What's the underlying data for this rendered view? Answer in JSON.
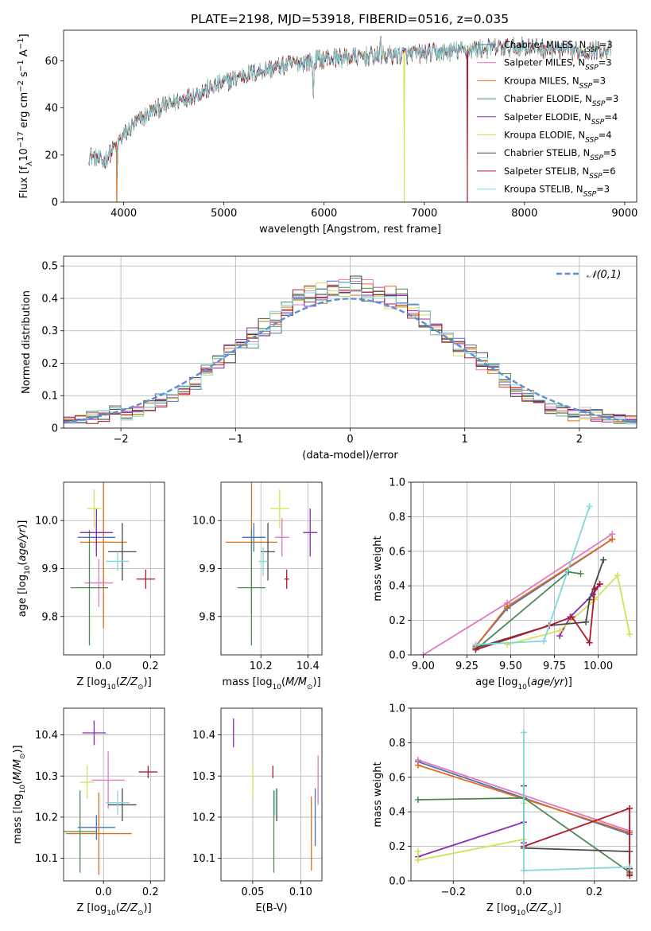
{
  "figure_title": "PLATE=2198, MJD=53918, FIBERID=0516, z=0.035",
  "colors": {
    "chabrier_miles": "#4c72b0",
    "salpeter_miles": "#e377c2",
    "kroupa_miles": "#dd6f1e",
    "chabrier_elodie": "#4d8a58",
    "salpeter_elodie": "#8e2ab0",
    "kroupa_elodie": "#d4e157",
    "chabrier_stelib": "#4a4a4a",
    "salpeter_stelib": "#b2182b",
    "kroupa_stelib": "#7fd8de",
    "gaussian": "#5b8fd6"
  },
  "chart_data": [
    {
      "id": "spectrum",
      "type": "line",
      "title": "PLATE=2198, MJD=53918, FIBERID=0516, z=0.035",
      "xlabel": "wavelength [Angstrom, rest frame]",
      "ylabel": "Flux [f_λ10^-17 erg cm^-2 s^-1 A^-1]",
      "xlim": [
        3400,
        9120
      ],
      "ylim": [
        0,
        73
      ],
      "xticks": [
        4000,
        5000,
        6000,
        7000,
        8000,
        9000
      ],
      "yticks": [
        0,
        20,
        40,
        60
      ],
      "legend_position": "upper right",
      "series": [
        {
          "name": "Chabrier MILES",
          "nssp": "3",
          "key": "chabrier_miles"
        },
        {
          "name": "Salpeter MILES",
          "nssp": "3",
          "key": "salpeter_miles"
        },
        {
          "name": "Kroupa MILES",
          "nssp": "3",
          "key": "kroupa_miles"
        },
        {
          "name": "Chabrier ELODIE",
          "nssp": "3",
          "key": "chabrier_elodie"
        },
        {
          "name": "Salpeter ELODIE",
          "nssp": "4",
          "key": "salpeter_elodie"
        },
        {
          "name": "Kroupa ELODIE",
          "nssp": "4",
          "key": "kroupa_elodie"
        },
        {
          "name": "Chabrier STELIB",
          "nssp": "5",
          "key": "chabrier_stelib"
        },
        {
          "name": "Salpeter STELIB",
          "nssp": "6",
          "key": "salpeter_stelib"
        },
        {
          "name": "Kroupa STELIB",
          "nssp": "3",
          "key": "kroupa_stelib"
        }
      ],
      "continuum": {
        "x": [
          3650,
          3800,
          3950,
          4100,
          4300,
          4600,
          4900,
          5200,
          5600,
          6000,
          6500,
          7000,
          7500,
          8000,
          8500,
          8850
        ],
        "y": [
          20,
          17,
          26,
          33,
          39,
          44,
          49,
          54,
          58,
          61,
          62,
          63,
          65,
          66,
          64,
          65
        ]
      },
      "features": [
        {
          "x": 3933,
          "y": 5
        },
        {
          "x": 5893,
          "y": 39
        },
        {
          "x": 6563,
          "y": 72
        }
      ],
      "drops": [
        {
          "x": 3930,
          "y": 0,
          "key": "kroupa_miles"
        },
        {
          "x": 6800,
          "y": 0,
          "key": "kroupa_elodie"
        },
        {
          "x": 7430,
          "y": 0,
          "key": "salpeter_stelib"
        }
      ]
    },
    {
      "id": "residuals",
      "type": "step",
      "xlabel": "(data-model)/error",
      "ylabel": "Normed distribution",
      "xlim": [
        -2.5,
        2.5
      ],
      "ylim": [
        0,
        0.53
      ],
      "xticks": [
        -2,
        -1,
        0,
        1,
        2
      ],
      "xticklabels": [
        "−2",
        "−1",
        "0",
        "1",
        "2"
      ],
      "yticks": [
        0.0,
        0.1,
        0.2,
        0.3,
        0.4,
        0.5
      ],
      "legend": {
        "name": "𝒩(0,1)",
        "position": "upper right"
      },
      "bin_width": 0.1,
      "bins_start": -2.5
    },
    {
      "id": "age_vs_Z",
      "type": "errorbar",
      "xlabel": "Z [log10(Z/Z⊙)]",
      "ylabel": "age [log10(age/yr)]",
      "xlim": [
        -0.17,
        0.26
      ],
      "ylim": [
        9.72,
        10.08
      ],
      "xticks": [
        -0.0,
        0.2
      ],
      "xticklabels": [
        "0.0",
        "0.2"
      ],
      "yticks": [
        9.8,
        9.9,
        10.0
      ],
      "yticklabels": [
        "9.8",
        "9.9",
        "10.0"
      ],
      "points": [
        {
          "key": "chabrier_miles",
          "x": -0.03,
          "xerr": 0.08,
          "y": 9.965,
          "yerr": 0.03
        },
        {
          "key": "salpeter_miles",
          "x": -0.02,
          "xerr": 0.06,
          "y": 9.87,
          "yerr": 0.05
        },
        {
          "key": "kroupa_miles",
          "x": 0.0,
          "xerr": 0.1,
          "y": 9.955,
          "yerr": 0.18
        },
        {
          "key": "chabrier_elodie",
          "x": -0.06,
          "xerr": 0.08,
          "y": 9.86,
          "yerr": 0.12
        },
        {
          "key": "salpeter_elodie",
          "x": -0.03,
          "xerr": 0.07,
          "y": 9.975,
          "yerr": 0.05
        },
        {
          "key": "kroupa_elodie",
          "x": -0.04,
          "xerr": 0.03,
          "y": 10.025,
          "yerr": 0.04
        },
        {
          "key": "chabrier_stelib",
          "x": 0.08,
          "xerr": 0.06,
          "y": 9.935,
          "yerr": 0.06
        },
        {
          "key": "salpeter_stelib",
          "x": 0.18,
          "xerr": 0.04,
          "y": 9.878,
          "yerr": 0.02
        },
        {
          "key": "kroupa_stelib",
          "x": 0.06,
          "xerr": 0.05,
          "y": 9.915,
          "yerr": 0.02
        }
      ]
    },
    {
      "id": "age_vs_mass",
      "type": "errorbar",
      "xlabel": "mass [log10(M/M⊙)]",
      "ylabel": "",
      "xlim": [
        10.03,
        10.46
      ],
      "ylim": [
        9.72,
        10.08
      ],
      "xticks": [
        10.2,
        10.4
      ],
      "xticklabels": [
        "10.2",
        "10.4"
      ],
      "yticks": [
        9.8,
        9.9,
        10.0
      ],
      "yticklabels": [
        "9.8",
        "9.9",
        "10.0"
      ],
      "points": [
        {
          "key": "chabrier_miles",
          "x": 10.17,
          "xerr": 0.05,
          "y": 9.965,
          "yerr": 0.03
        },
        {
          "key": "salpeter_miles",
          "x": 10.29,
          "xerr": 0.03,
          "y": 9.965,
          "yerr": 0.04
        },
        {
          "key": "kroupa_miles",
          "x": 10.16,
          "xerr": 0.11,
          "y": 9.955,
          "yerr": 0.15
        },
        {
          "key": "chabrier_elodie",
          "x": 10.16,
          "xerr": 0.06,
          "y": 9.86,
          "yerr": 0.12
        },
        {
          "key": "salpeter_elodie",
          "x": 10.41,
          "xerr": 0.03,
          "y": 9.975,
          "yerr": 0.05
        },
        {
          "key": "kroupa_elodie",
          "x": 10.28,
          "xerr": 0.04,
          "y": 10.025,
          "yerr": 0.04
        },
        {
          "key": "chabrier_stelib",
          "x": 10.23,
          "xerr": 0.03,
          "y": 9.935,
          "yerr": 0.06
        },
        {
          "key": "salpeter_stelib",
          "x": 10.31,
          "xerr": 0.01,
          "y": 9.878,
          "yerr": 0.02
        },
        {
          "key": "kroupa_stelib",
          "x": 10.21,
          "xerr": 0.02,
          "y": 9.915,
          "yerr": 0.03
        }
      ]
    },
    {
      "id": "weight_vs_age",
      "type": "line",
      "xlabel": "age [log10(age/yr)]",
      "ylabel": "mass weight",
      "xlim": [
        8.93,
        10.22
      ],
      "ylim": [
        0,
        1.0
      ],
      "xticks": [
        9.0,
        9.25,
        9.5,
        9.75,
        10.0
      ],
      "xticklabels": [
        "9.00",
        "9.25",
        "9.50",
        "9.75",
        "10.00"
      ],
      "yticks": [
        0,
        0.2,
        0.4,
        0.6,
        0.8,
        1.0
      ],
      "yticklabels": [
        "0.0",
        "0.2",
        "0.4",
        "0.6",
        "0.8",
        "1.0"
      ],
      "series": [
        {
          "key": "chabrier_miles",
          "x": [
            9.3,
            9.48,
            10.08
          ],
          "y": [
            0.05,
            0.27,
            0.67
          ]
        },
        {
          "key": "salpeter_miles",
          "x": [
            9.0,
            9.48,
            10.08
          ],
          "y": [
            0.0,
            0.3,
            0.7
          ]
        },
        {
          "key": "kroupa_miles",
          "x": [
            9.3,
            9.48,
            10.08
          ],
          "y": [
            0.05,
            0.28,
            0.67
          ]
        },
        {
          "key": "chabrier_elodie",
          "x": [
            9.3,
            9.83,
            9.9
          ],
          "y": [
            0.03,
            0.48,
            0.47
          ]
        },
        {
          "key": "salpeter_elodie",
          "x": [
            9.78,
            9.84,
            9.97,
            10.01
          ],
          "y": [
            0.11,
            0.22,
            0.35,
            0.41
          ]
        },
        {
          "key": "kroupa_elodie",
          "x": [
            9.48,
            9.78,
            9.98,
            10.11,
            10.18
          ],
          "y": [
            0.06,
            0.14,
            0.32,
            0.46,
            0.12
          ]
        },
        {
          "key": "chabrier_stelib",
          "x": [
            9.3,
            9.72,
            9.93,
            9.95,
            10.03
          ],
          "y": [
            0.04,
            0.17,
            0.19,
            0.32,
            0.55
          ]
        },
        {
          "key": "salpeter_stelib",
          "x": [
            9.3,
            9.72,
            9.85,
            9.95,
            9.98,
            10.01
          ],
          "y": [
            0.03,
            0.17,
            0.22,
            0.07,
            0.38,
            0.41
          ]
        },
        {
          "key": "kroupa_stelib",
          "x": [
            9.3,
            9.69,
            9.95
          ],
          "y": [
            0.06,
            0.08,
            0.86
          ]
        }
      ]
    },
    {
      "id": "mass_vs_Z",
      "type": "errorbar",
      "xlabel": "Z [log10(Z/Z⊙)]",
      "ylabel": "mass [log10(M/M⊙)]",
      "xlim": [
        -0.17,
        0.26
      ],
      "ylim": [
        10.045,
        10.465
      ],
      "xticks": [
        0.0,
        0.2
      ],
      "xticklabels": [
        "0.0",
        "0.2"
      ],
      "yticks": [
        10.1,
        10.2,
        10.3,
        10.4
      ],
      "yticklabels": [
        "10.1",
        "10.2",
        "10.3",
        "10.4"
      ],
      "points": [
        {
          "key": "chabrier_miles",
          "x": -0.03,
          "xerr": 0.08,
          "y": 10.175,
          "yerr": 0.03
        },
        {
          "key": "salpeter_miles",
          "x": 0.02,
          "xerr": 0.07,
          "y": 10.29,
          "yerr": 0.07
        },
        {
          "key": "kroupa_miles",
          "x": -0.02,
          "xerr": 0.14,
          "y": 10.16,
          "yerr": 0.1
        },
        {
          "key": "chabrier_elodie",
          "x": -0.1,
          "xerr": 0.07,
          "y": 10.165,
          "yerr": 0.1
        },
        {
          "key": "salpeter_elodie",
          "x": -0.04,
          "xerr": 0.05,
          "y": 10.405,
          "yerr": 0.03
        },
        {
          "key": "kroupa_elodie",
          "x": -0.07,
          "xerr": 0.03,
          "y": 10.285,
          "yerr": 0.04
        },
        {
          "key": "chabrier_stelib",
          "x": 0.08,
          "xerr": 0.06,
          "y": 10.23,
          "yerr": 0.04
        },
        {
          "key": "salpeter_stelib",
          "x": 0.19,
          "xerr": 0.04,
          "y": 10.31,
          "yerr": 0.015
        },
        {
          "key": "kroupa_stelib",
          "x": 0.06,
          "xerr": 0.05,
          "y": 10.235,
          "yerr": 0.03
        }
      ]
    },
    {
      "id": "mass_vs_ebv",
      "type": "errorbar",
      "xlabel": "E(B-V)",
      "ylabel": "",
      "xlim": [
        0.017,
        0.122
      ],
      "ylim": [
        10.045,
        10.465
      ],
      "xticks": [
        0.05,
        0.1
      ],
      "xticklabels": [
        "0.05",
        "0.10"
      ],
      "yticks": [
        10.1,
        10.2,
        10.3,
        10.4
      ],
      "yticklabels": [
        "10.1",
        "10.2",
        "10.3",
        "10.4"
      ],
      "points": [
        {
          "key": "chabrier_miles",
          "x": 0.115,
          "y": 10.2,
          "yerr": 0.07
        },
        {
          "key": "salpeter_miles",
          "x": 0.118,
          "y": 10.29,
          "yerr": 0.06
        },
        {
          "key": "kroupa_miles",
          "x": 0.111,
          "y": 10.16,
          "yerr": 0.09
        },
        {
          "key": "chabrier_elodie",
          "x": 0.072,
          "y": 10.165,
          "yerr": 0.1
        },
        {
          "key": "salpeter_elodie",
          "x": 0.03,
          "y": 10.405,
          "yerr": 0.035
        },
        {
          "key": "kroupa_elodie",
          "x": 0.05,
          "y": 10.285,
          "yerr": 0.04
        },
        {
          "key": "chabrier_stelib",
          "x": 0.075,
          "y": 10.23,
          "yerr": 0.04
        },
        {
          "key": "salpeter_stelib",
          "x": 0.071,
          "y": 10.31,
          "yerr": 0.015
        },
        {
          "key": "kroupa_stelib",
          "x": 0.073,
          "y": 10.235,
          "yerr": 0.03
        }
      ]
    },
    {
      "id": "weight_vs_Z",
      "type": "line",
      "xlabel": "Z [log10(Z/Z⊙)]",
      "ylabel": "mass weight",
      "xlim": [
        -0.32,
        0.32
      ],
      "ylim": [
        0,
        1.0
      ],
      "xticks": [
        -0.2,
        0.0,
        0.2
      ],
      "xticklabels": [
        "−0.2",
        "0.0",
        "0.2"
      ],
      "yticks": [
        0,
        0.2,
        0.4,
        0.6,
        0.8,
        1.0
      ],
      "yticklabels": [
        "0.0",
        "0.2",
        "0.4",
        "0.6",
        "0.8",
        "1.0"
      ],
      "series": [
        {
          "key": "chabrier_miles",
          "x": [
            -0.3,
            0.3
          ],
          "y": [
            0.69,
            0.27
          ]
        },
        {
          "key": "salpeter_miles",
          "x": [
            -0.3,
            0.3
          ],
          "y": [
            0.7,
            0.29
          ]
        },
        {
          "key": "kroupa_miles",
          "x": [
            -0.3,
            0.3
          ],
          "y": [
            0.67,
            0.28
          ]
        },
        {
          "key": "chabrier_elodie",
          "x": [
            -0.3,
            0.0,
            0.3
          ],
          "y": [
            0.47,
            0.48,
            0.05
          ]
        },
        {
          "key": "salpeter_elodie",
          "x": [
            -0.3,
            0.0,
            0.0
          ],
          "y": [
            0.14,
            0.34,
            0.22
          ]
        },
        {
          "key": "kroupa_elodie",
          "x": [
            -0.3,
            -0.3,
            0.0,
            0.0
          ],
          "y": [
            0.17,
            0.12,
            0.24,
            0.45
          ]
        },
        {
          "key": "chabrier_stelib",
          "x": [
            0.0,
            0.0,
            0.3,
            0.3
          ],
          "y": [
            0.55,
            0.19,
            0.17,
            0.04
          ]
        },
        {
          "key": "salpeter_stelib",
          "x": [
            0.0,
            0.3,
            0.3,
            0.3
          ],
          "y": [
            0.2,
            0.42,
            0.03,
            0.07
          ]
        },
        {
          "key": "kroupa_stelib",
          "x": [
            0.0,
            0.0,
            0.3
          ],
          "y": [
            0.86,
            0.06,
            0.08
          ]
        }
      ]
    }
  ]
}
